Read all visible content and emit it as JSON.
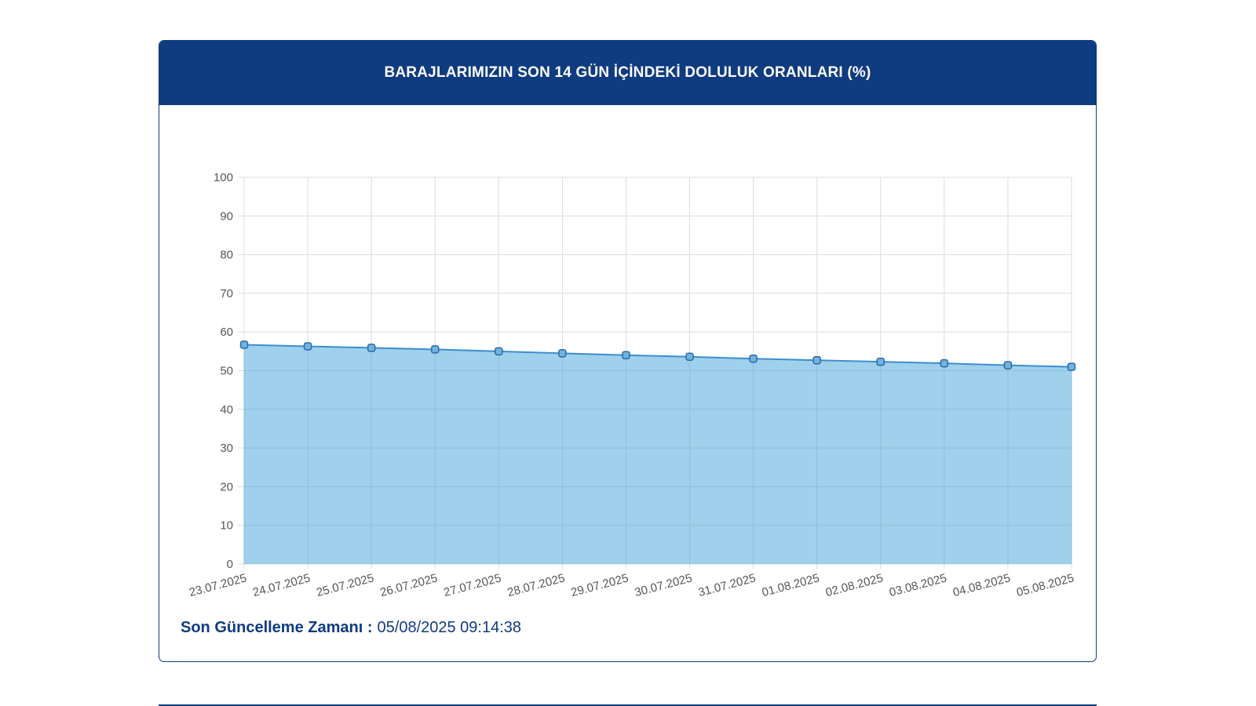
{
  "header": {
    "title": "BARAJLARIMIZIN SON 14 GÜN İÇİNDEKİ DOLULUK ORANLARI (%)"
  },
  "footer": {
    "label": "Son Güncelleme Zamanı :",
    "value": "05/08/2025 09:14:38"
  },
  "colors": {
    "header_bg": "#0f3b80",
    "area_fill": "#9fd0ec",
    "line": "#3d8ed0",
    "grid": "#dcdcdc",
    "tick_text": "#555555"
  },
  "chart_data": {
    "type": "area",
    "title": "BARAJLARIMIZIN SON 14 GÜN İÇİNDEKİ DOLULUK ORANLARI (%)",
    "xlabel": "",
    "ylabel": "",
    "ylim": [
      0,
      100
    ],
    "yticks": [
      0,
      10,
      20,
      30,
      40,
      50,
      60,
      70,
      80,
      90,
      100
    ],
    "grid": true,
    "legend": "none",
    "categories": [
      "23.07.2025",
      "24.07.2025",
      "25.07.2025",
      "26.07.2025",
      "27.07.2025",
      "28.07.2025",
      "29.07.2025",
      "30.07.2025",
      "31.07.2025",
      "01.08.2025",
      "02.08.2025",
      "03.08.2025",
      "04.08.2025",
      "05.08.2025"
    ],
    "series": [
      {
        "values": [
          56.7,
          56.3,
          55.9,
          55.5,
          55.0,
          54.5,
          54.0,
          53.6,
          53.1,
          52.7,
          52.3,
          51.9,
          51.4,
          51.0
        ]
      }
    ]
  }
}
